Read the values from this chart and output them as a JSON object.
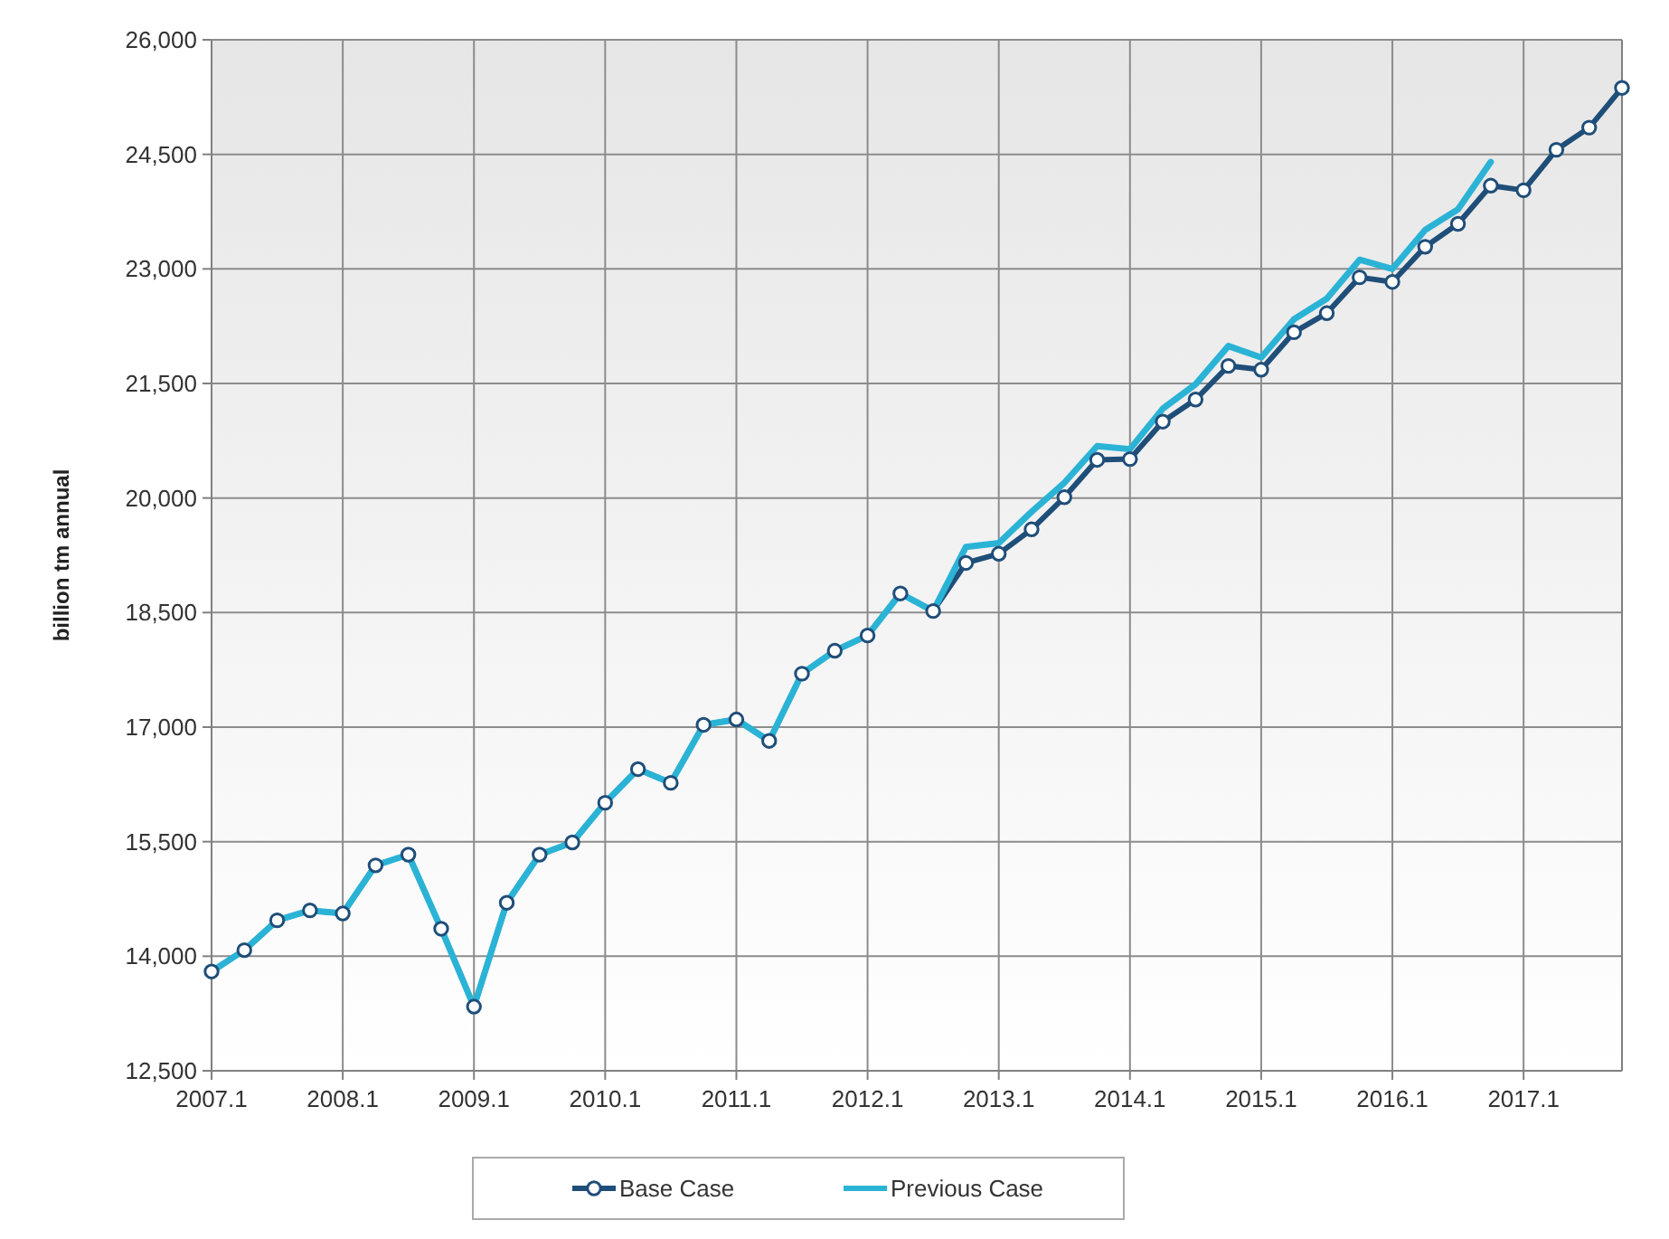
{
  "chart_data": {
    "type": "line",
    "ylabel": "billion tm annual",
    "categories": [
      "2007.1",
      null,
      null,
      null,
      "2008.1",
      null,
      null,
      null,
      "2009.1",
      null,
      null,
      null,
      "2010.1",
      null,
      null,
      null,
      "2011.1",
      null,
      null,
      null,
      "2012.1",
      null,
      null,
      null,
      "2013.1",
      null,
      null,
      null,
      "2014.1",
      null,
      null,
      null,
      "2015.1",
      null,
      null,
      null,
      "2016.1",
      null,
      null,
      null,
      "2017.1",
      null,
      null,
      null
    ],
    "series": [
      {
        "name": "Base Case",
        "color": "#1f4e79",
        "marker": "circle",
        "values": [
          13800,
          14080,
          14470,
          14600,
          14560,
          15190,
          15330,
          14360,
          13340,
          14700,
          15330,
          15490,
          16010,
          16450,
          16270,
          17030,
          17100,
          16820,
          17700,
          18000,
          18200,
          18750,
          18520,
          19150,
          19270,
          19590,
          20010,
          20500,
          20510,
          21000,
          21290,
          21730,
          21680,
          22170,
          22420,
          22890,
          22830,
          23290,
          23590,
          24090,
          24030,
          24560,
          24850,
          25370
        ]
      },
      {
        "name": "Previous Case",
        "color": "#2bb3d6",
        "marker": "none",
        "values": [
          13800,
          14080,
          14470,
          14600,
          14560,
          15190,
          15330,
          14360,
          13340,
          14700,
          15330,
          15490,
          16010,
          16450,
          16270,
          17030,
          17100,
          16820,
          17700,
          18000,
          18200,
          18750,
          18520,
          19360,
          19410,
          19820,
          20200,
          20680,
          20640,
          21170,
          21490,
          21990,
          21840,
          22340,
          22610,
          23120,
          23000,
          23510,
          23780,
          24400,
          null,
          null,
          null,
          null
        ]
      }
    ],
    "ylim": [
      12500,
      26000
    ],
    "yticks": [
      {
        "value": 12500,
        "label": "12,500"
      },
      {
        "value": 14000,
        "label": "14,000"
      },
      {
        "value": 15500,
        "label": "15,500"
      },
      {
        "value": 17000,
        "label": "17,000"
      },
      {
        "value": 18500,
        "label": "18,500"
      },
      {
        "value": 20000,
        "label": "20,000"
      },
      {
        "value": 21500,
        "label": "21,500"
      },
      {
        "value": 23000,
        "label": "23,000"
      },
      {
        "value": 24500,
        "label": "24,500"
      },
      {
        "value": 26000,
        "label": "26,000"
      }
    ],
    "grid": true,
    "legend": "bottom",
    "line_style": "solid"
  }
}
